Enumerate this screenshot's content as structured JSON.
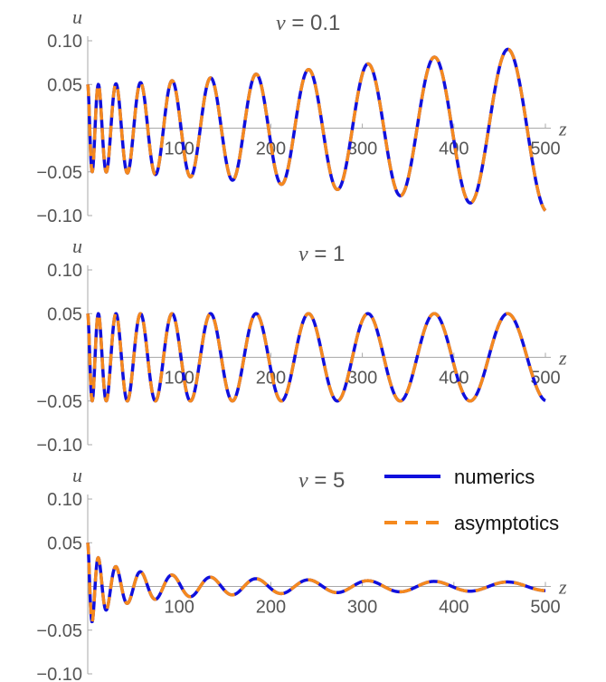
{
  "chart_data": [
    {
      "type": "line",
      "title": "v = 0.1",
      "title_var": "v",
      "title_value": "= 0.1",
      "v": 0.1,
      "xlabel": "z",
      "ylabel": "u",
      "xlim": [
        0,
        500
      ],
      "ylim": [
        -0.1,
        0.1
      ],
      "xticks": [
        100,
        200,
        300,
        400,
        500
      ],
      "xtick_labels": [
        "100",
        "200",
        "300",
        "400",
        "500"
      ],
      "yticks": [
        0.1,
        0.05,
        -0.05,
        -0.1
      ],
      "ytick_labels": [
        "0.10",
        "0.05",
        "−0.05",
        "−0.10"
      ],
      "grid": false,
      "series": [
        {
          "name": "numerics",
          "color": "#1010dd",
          "style": "solid"
        },
        {
          "name": "asymptotics",
          "color": "#f5891e",
          "style": "dashed"
        }
      ]
    },
    {
      "type": "line",
      "title": "v = 1",
      "title_var": "v",
      "title_value": "= 1",
      "v": 1,
      "xlabel": "z",
      "ylabel": "u",
      "xlim": [
        0,
        500
      ],
      "ylim": [
        -0.1,
        0.1
      ],
      "xticks": [
        100,
        200,
        300,
        400,
        500
      ],
      "xtick_labels": [
        "100",
        "200",
        "300",
        "400",
        "500"
      ],
      "yticks": [
        0.1,
        0.05,
        -0.05,
        -0.1
      ],
      "ytick_labels": [
        "0.10",
        "0.05",
        "−0.05",
        "−0.10"
      ],
      "grid": false,
      "series": [
        {
          "name": "numerics",
          "color": "#1010dd",
          "style": "solid"
        },
        {
          "name": "asymptotics",
          "color": "#f5891e",
          "style": "dashed"
        }
      ]
    },
    {
      "type": "line",
      "title": "v = 5",
      "title_var": "v",
      "title_value": "= 5",
      "v": 5,
      "xlabel": "z",
      "ylabel": "u",
      "xlim": [
        0,
        500
      ],
      "ylim": [
        -0.1,
        0.1
      ],
      "xticks": [
        100,
        200,
        300,
        400,
        500
      ],
      "xtick_labels": [
        "100",
        "200",
        "300",
        "400",
        "500"
      ],
      "yticks": [
        0.1,
        0.05,
        -0.05,
        -0.1
      ],
      "ytick_labels": [
        "0.10",
        "0.05",
        "−0.05",
        "−0.10"
      ],
      "grid": false,
      "series": [
        {
          "name": "numerics",
          "color": "#1010dd",
          "style": "solid"
        },
        {
          "name": "asymptotics",
          "color": "#f5891e",
          "style": "dashed"
        }
      ]
    }
  ],
  "legend": {
    "placement": "top-right of bottom panel",
    "items": [
      {
        "label": "numerics",
        "color": "#1010dd",
        "style": "solid"
      },
      {
        "label": "asymptotics",
        "color": "#f5891e",
        "style": "dashed"
      }
    ]
  }
}
